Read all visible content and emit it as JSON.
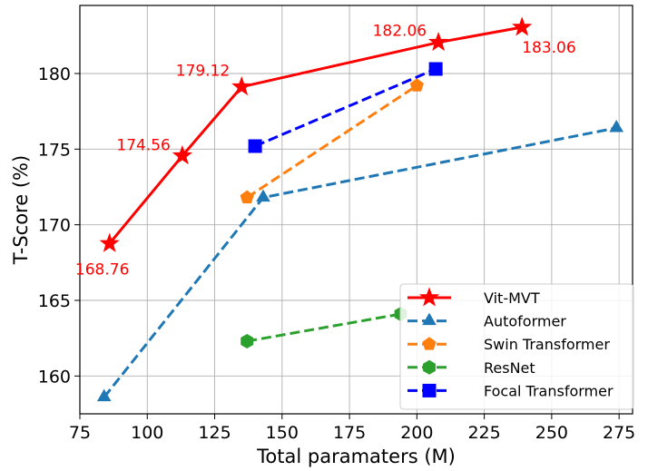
{
  "chart_data": {
    "type": "line",
    "title": "",
    "xlabel": "Total paramaters (M)",
    "ylabel": "T-Score (%)",
    "xlim": [
      75,
      280
    ],
    "ylim": [
      157.5,
      184.5
    ],
    "xticks": [
      75,
      100,
      125,
      150,
      175,
      200,
      225,
      250,
      275
    ],
    "yticks": [
      160,
      165,
      170,
      175,
      180
    ],
    "grid": true,
    "legend_position": "lower-right",
    "series": [
      {
        "name": "Vit-MVT",
        "color": "#ff0000",
        "linestyle": "solid",
        "marker": "star",
        "x": [
          86,
          113,
          135,
          208,
          239
        ],
        "y": [
          168.76,
          174.56,
          179.12,
          182.06,
          183.06
        ],
        "point_labels": [
          "168.76",
          "174.56",
          "179.12",
          "182.06",
          "183.06"
        ]
      },
      {
        "name": "Autoformer",
        "color": "#1f77b4",
        "linestyle": "dashed",
        "marker": "triangle",
        "x": [
          84,
          143,
          274
        ],
        "y": [
          158.6,
          171.8,
          176.4
        ]
      },
      {
        "name": "Swin Transformer",
        "color": "#ff7f0e",
        "linestyle": "dashed",
        "marker": "pentagon",
        "x": [
          137,
          200
        ],
        "y": [
          171.8,
          179.2
        ]
      },
      {
        "name": "ResNet",
        "color": "#2ca02c",
        "linestyle": "dashed",
        "marker": "hexagon",
        "x": [
          137,
          194
        ],
        "y": [
          162.3,
          164.1
        ]
      },
      {
        "name": "Focal Transformer",
        "color": "#0000ff",
        "linestyle": "dashed",
        "marker": "square",
        "x": [
          140,
          207
        ],
        "y": [
          175.2,
          180.3
        ]
      }
    ]
  }
}
